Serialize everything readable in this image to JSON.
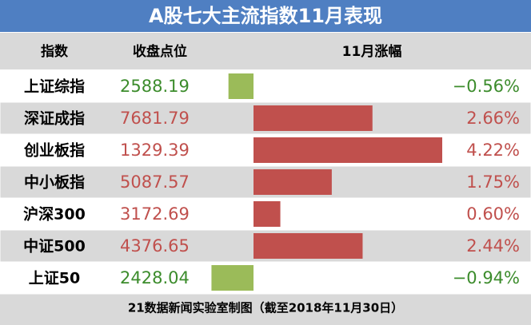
{
  "chart_data": {
    "type": "bar",
    "title": "A股七大主流指数11月表现",
    "headers": [
      "指数",
      "收盘点位",
      "11月涨幅"
    ],
    "categories": [
      "上证综指",
      "深证成指",
      "创业板指",
      "中小板指",
      "沪深300",
      "中证500",
      "上证50"
    ],
    "close": [
      2588.19,
      7681.79,
      1329.39,
      5087.57,
      3172.69,
      4376.65,
      2428.04
    ],
    "values": [
      -0.56,
      2.66,
      4.22,
      1.75,
      0.6,
      2.44,
      -0.94
    ],
    "value_labels": [
      "−0.56%",
      "2.66%",
      "4.22%",
      "1.75%",
      "0.60%",
      "2.44%",
      "−0.94%"
    ],
    "positive_color": "#c0504d",
    "negative_color": "#9bbb59",
    "positive_text_color": "#c0504d",
    "negative_text_color": "#3c8c2c",
    "source": "21数据新闻实验室制图（截至2018年11月30日）"
  }
}
